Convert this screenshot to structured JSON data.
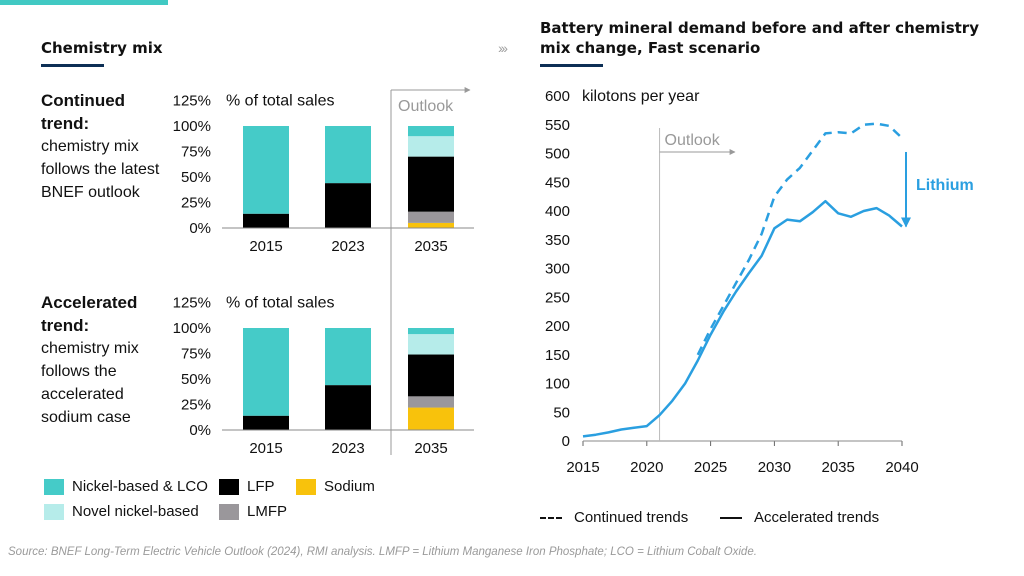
{
  "left_panel": {
    "title": "Chemistry mix",
    "continued": {
      "bold": "Continued trend:",
      "text": "chemistry mix follows the latest BNEF outlook"
    },
    "accelerated": {
      "bold": "Accelerated trend:",
      "text": "chemistry mix follows the accelerated sodium case"
    },
    "legend": [
      {
        "label": "Nickel-based & LCO",
        "color": "#45cbc8"
      },
      {
        "label": "LFP",
        "color": "#000000"
      },
      {
        "label": "Sodium",
        "color": "#f8c20c"
      },
      {
        "label": "Novel nickel-based",
        "color": "#b6ecea"
      },
      {
        "label": "LMFP",
        "color": "#9a979b"
      }
    ]
  },
  "right_panel": {
    "title": "Battery mineral demand before and after chemistry mix change, Fast scenario",
    "legend": {
      "dashed": "Continued trends",
      "solid": "Accelerated trends"
    }
  },
  "source": "Source: BNEF Long-Term Electric Vehicle Outlook (2024), RMI analysis. LMFP = Lithium Manganese Iron Phosphate; LCO = Lithium Cobalt Oxide.",
  "chart_data": [
    {
      "type": "bar",
      "stacked": true,
      "panel": "Continued trend",
      "ylabel": "% of total sales",
      "yticks": [
        "0%",
        "25%",
        "50%",
        "75%",
        "100%",
        "125%"
      ],
      "ylim": [
        0,
        125
      ],
      "categories": [
        "2015",
        "2023",
        "2035"
      ],
      "annotation": "Outlook",
      "series": [
        {
          "name": "Sodium",
          "color": "#f8c20c",
          "values": [
            0,
            0,
            5
          ]
        },
        {
          "name": "LMFP",
          "color": "#9a979b",
          "values": [
            0,
            0,
            11
          ]
        },
        {
          "name": "LFP",
          "color": "#000000",
          "values": [
            14,
            44,
            54
          ]
        },
        {
          "name": "Novel nickel-based",
          "color": "#b6ecea",
          "values": [
            0,
            0,
            20
          ]
        },
        {
          "name": "Nickel-based & LCO",
          "color": "#45cbc8",
          "values": [
            86,
            56,
            10
          ]
        }
      ]
    },
    {
      "type": "bar",
      "stacked": true,
      "panel": "Accelerated trend",
      "ylabel": "% of total sales",
      "yticks": [
        "0%",
        "25%",
        "50%",
        "75%",
        "100%",
        "125%"
      ],
      "ylim": [
        0,
        125
      ],
      "categories": [
        "2015",
        "2023",
        "2035"
      ],
      "series": [
        {
          "name": "Sodium",
          "color": "#f8c20c",
          "values": [
            0,
            0,
            22
          ]
        },
        {
          "name": "LMFP",
          "color": "#9a979b",
          "values": [
            0,
            0,
            11
          ]
        },
        {
          "name": "LFP",
          "color": "#000000",
          "values": [
            14,
            44,
            41
          ]
        },
        {
          "name": "Novel nickel-based",
          "color": "#b6ecea",
          "values": [
            0,
            0,
            20
          ]
        },
        {
          "name": "Nickel-based & LCO",
          "color": "#45cbc8",
          "values": [
            86,
            56,
            6
          ]
        }
      ]
    },
    {
      "type": "line",
      "title": "Battery mineral demand before and after chemistry mix change, Fast scenario",
      "ylabel": "kilotons per year",
      "ylim": [
        0,
        600
      ],
      "yticks": [
        0,
        50,
        100,
        150,
        200,
        250,
        300,
        350,
        400,
        450,
        500,
        550,
        600
      ],
      "xlim": [
        2015,
        2040
      ],
      "xticks": [
        2015,
        2020,
        2025,
        2030,
        2035,
        2040
      ],
      "annotation": "Outlook",
      "annotation_x": 2021,
      "arrow_label": "Lithium",
      "color": "#2a9fe0",
      "series": [
        {
          "name": "Continued trends",
          "style": "dashed",
          "x": [
            2024,
            2025,
            2026,
            2027,
            2028,
            2029,
            2030,
            2031,
            2032,
            2033,
            2034,
            2035,
            2036,
            2037,
            2038,
            2039,
            2040
          ],
          "y": [
            150,
            195,
            235,
            275,
            315,
            360,
            425,
            455,
            475,
            505,
            535,
            537,
            535,
            550,
            552,
            548,
            527
          ]
        },
        {
          "name": "Accelerated trends",
          "style": "solid",
          "x": [
            2015,
            2016,
            2017,
            2018,
            2019,
            2020,
            2021,
            2022,
            2023,
            2024,
            2025,
            2026,
            2027,
            2028,
            2029,
            2030,
            2031,
            2032,
            2033,
            2034,
            2035,
            2036,
            2037,
            2038,
            2039,
            2040
          ],
          "y": [
            8,
            11,
            15,
            20,
            23,
            26,
            45,
            70,
            100,
            140,
            185,
            225,
            260,
            292,
            322,
            370,
            385,
            382,
            398,
            417,
            396,
            390,
            400,
            405,
            392,
            373
          ]
        }
      ]
    }
  ]
}
